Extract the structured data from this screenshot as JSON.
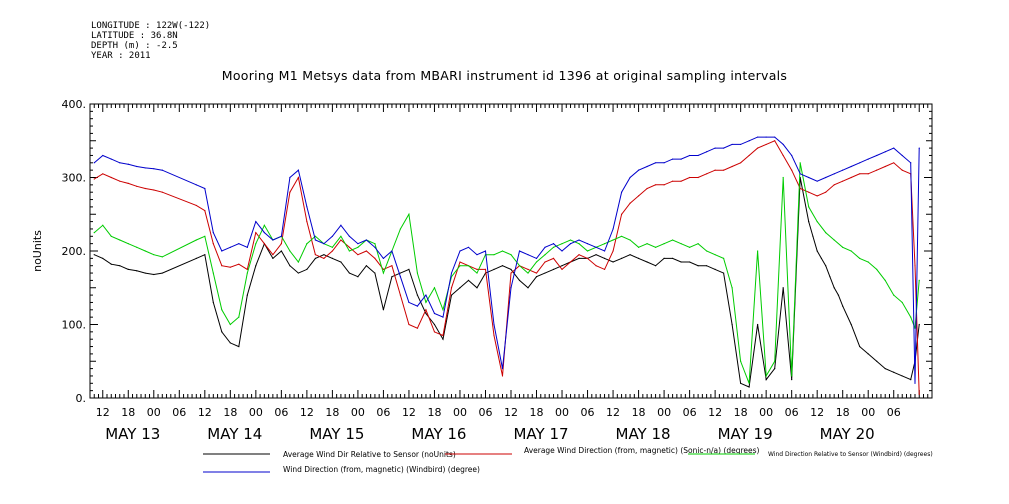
{
  "header": {
    "longitude": "LONGITUDE : 122W(-122)",
    "latitude": "LATITUDE : 36.8N",
    "depth": "DEPTH (m) : -2.5",
    "year": "YEAR : 2011"
  },
  "chart_data": {
    "type": "line",
    "title": "Mooring M1 Metsys data from MBARI instrument id 1396 at original sampling intervals",
    "ylabel": "noUnits",
    "xlabel": "",
    "ylim": [
      0,
      400
    ],
    "y_ticks": [
      "0.",
      "100.",
      "200.",
      "300.",
      "400."
    ],
    "x_range_hours": [
      -15,
      183
    ],
    "x_hour_ticks": [
      "12",
      "18",
      "00",
      "06",
      "12",
      "18",
      "00",
      "06",
      "12",
      "18",
      "00",
      "06",
      "12",
      "18",
      "00",
      "06",
      "12",
      "18",
      "00",
      "06",
      "12",
      "18",
      "00",
      "06",
      "12",
      "18",
      "00",
      "06",
      "12",
      "18",
      "00",
      "06"
    ],
    "x_day_labels": [
      "MAY 13",
      "MAY 14",
      "MAY 15",
      "MAY 16",
      "MAY 17",
      "MAY 18",
      "MAY 19",
      "MAY 20"
    ],
    "x_units_note": "x values are hours from 00:00 May 13 2011",
    "series": [
      {
        "name": "Average Wind Dir Relative to Sensor (noUnits)",
        "color": "#000000",
        "x": [
          -14,
          -12,
          -10,
          -8,
          -6,
          -4,
          -2,
          0,
          2,
          10,
          12,
          14,
          16,
          18,
          20,
          22,
          24,
          26,
          28,
          30,
          32,
          34,
          36,
          38,
          40,
          42,
          44,
          46,
          48,
          50,
          52,
          54,
          56,
          58,
          60,
          62,
          64,
          66,
          68,
          70,
          72,
          74,
          76,
          78,
          80,
          82,
          84,
          86,
          88,
          90,
          92,
          94,
          96,
          98,
          100,
          102,
          104,
          106,
          108,
          110,
          112,
          114,
          116,
          118,
          120,
          122,
          124,
          126,
          128,
          130,
          132,
          134,
          136,
          138,
          140,
          142,
          144,
          146,
          148,
          150,
          152,
          154,
          155,
          156,
          157,
          158,
          159,
          160,
          161,
          162,
          164,
          166,
          168,
          170,
          172,
          174,
          176,
          178,
          179,
          180
        ],
        "y": [
          195,
          190,
          182,
          180,
          175,
          173,
          170,
          168,
          170,
          190,
          195,
          130,
          90,
          75,
          70,
          140,
          180,
          210,
          190,
          200,
          180,
          170,
          175,
          190,
          195,
          190,
          185,
          170,
          165,
          180,
          170,
          120,
          165,
          170,
          175,
          140,
          115,
          100,
          80,
          140,
          150,
          160,
          150,
          170,
          175,
          180,
          175,
          160,
          150,
          165,
          170,
          175,
          180,
          185,
          190,
          190,
          195,
          190,
          185,
          190,
          195,
          190,
          185,
          180,
          190,
          190,
          185,
          185,
          180,
          180,
          175,
          170,
          100,
          20,
          15,
          100,
          25,
          40,
          150,
          25,
          300,
          240,
          220,
          200,
          190,
          180,
          165,
          150,
          140,
          125,
          100,
          70,
          60,
          50,
          40,
          35,
          30,
          25,
          50,
          100
        ],
        "note": "values between hours 145 and 160 oscillate rapidly between about 10 and 350"
      },
      {
        "name": "Average Wind Direction (from, magnetic) (Sonic-n/a) (degrees)",
        "color": "#cc0000",
        "x": [
          -14,
          -12,
          -10,
          -8,
          -6,
          -4,
          -2,
          0,
          2,
          10,
          12,
          14,
          16,
          18,
          20,
          22,
          24,
          26,
          28,
          30,
          32,
          34,
          36,
          38,
          40,
          42,
          44,
          46,
          48,
          50,
          52,
          54,
          56,
          58,
          60,
          62,
          64,
          66,
          68,
          70,
          72,
          74,
          76,
          78,
          80,
          82,
          84,
          86,
          88,
          90,
          92,
          94,
          96,
          98,
          100,
          102,
          104,
          106,
          108,
          110,
          112,
          114,
          116,
          118,
          120,
          122,
          124,
          126,
          128,
          130,
          132,
          134,
          136,
          138,
          140,
          142,
          144,
          146,
          148,
          150,
          152,
          154,
          156,
          158,
          160,
          162,
          164,
          166,
          168,
          170,
          172,
          174,
          176,
          178,
          179,
          180
        ],
        "y": [
          298,
          305,
          300,
          295,
          292,
          288,
          285,
          283,
          280,
          262,
          255,
          210,
          180,
          178,
          182,
          175,
          225,
          210,
          195,
          210,
          280,
          300,
          240,
          195,
          190,
          200,
          215,
          205,
          195,
          200,
          190,
          175,
          180,
          140,
          100,
          95,
          120,
          90,
          85,
          150,
          185,
          180,
          175,
          175,
          85,
          30,
          170,
          180,
          175,
          170,
          185,
          190,
          175,
          185,
          195,
          190,
          180,
          175,
          200,
          250,
          265,
          275,
          285,
          290,
          290,
          295,
          295,
          300,
          300,
          305,
          310,
          310,
          315,
          320,
          330,
          340,
          345,
          350,
          330,
          310,
          285,
          280,
          275,
          280,
          290,
          295,
          300,
          305,
          305,
          310,
          315,
          320,
          310,
          305,
          180,
          5
        ],
        "note": "values between hours 145 and 160 oscillate rapidly between about 10 and 350"
      },
      {
        "name": "Wind Direction Relative to Sensor (Windbird) (degrees)",
        "color": "#00cc00",
        "x": [
          -14,
          -12,
          -10,
          -8,
          -6,
          -4,
          -2,
          0,
          2,
          10,
          12,
          14,
          16,
          18,
          20,
          22,
          24,
          26,
          28,
          30,
          32,
          34,
          36,
          38,
          40,
          42,
          44,
          46,
          48,
          50,
          52,
          54,
          56,
          58,
          60,
          62,
          64,
          66,
          68,
          70,
          72,
          74,
          76,
          78,
          80,
          82,
          84,
          86,
          88,
          90,
          92,
          94,
          96,
          98,
          100,
          102,
          104,
          106,
          108,
          110,
          112,
          114,
          116,
          118,
          120,
          122,
          124,
          126,
          128,
          130,
          132,
          134,
          136,
          138,
          140,
          142,
          144,
          146,
          148,
          150,
          152,
          154,
          156,
          158,
          160,
          162,
          164,
          166,
          168,
          170,
          172,
          174,
          176,
          178,
          179,
          180
        ],
        "y": [
          225,
          235,
          220,
          215,
          210,
          205,
          200,
          195,
          192,
          215,
          220,
          170,
          120,
          100,
          110,
          170,
          210,
          235,
          215,
          220,
          200,
          185,
          210,
          220,
          210,
          205,
          220,
          200,
          205,
          215,
          210,
          170,
          200,
          230,
          250,
          170,
          130,
          150,
          120,
          165,
          180,
          180,
          170,
          195,
          195,
          200,
          195,
          180,
          170,
          185,
          195,
          205,
          210,
          215,
          210,
          200,
          205,
          210,
          215,
          220,
          215,
          205,
          210,
          205,
          210,
          215,
          210,
          205,
          210,
          200,
          195,
          190,
          150,
          50,
          20,
          200,
          30,
          50,
          300,
          30,
          320,
          260,
          240,
          225,
          215,
          205,
          200,
          190,
          185,
          175,
          160,
          140,
          130,
          110,
          95,
          160
        ],
        "note": "values between hours 145 and 160 oscillate rapidly between about 10 and 350"
      },
      {
        "name": "Wind Direction (from, magnetic) (Windbird) (degree)",
        "color": "#0000cc",
        "x": [
          -14,
          -12,
          -10,
          -8,
          -6,
          -4,
          -2,
          0,
          2,
          10,
          12,
          14,
          16,
          18,
          20,
          22,
          24,
          26,
          28,
          30,
          32,
          34,
          36,
          38,
          40,
          42,
          44,
          46,
          48,
          50,
          52,
          54,
          56,
          58,
          60,
          62,
          64,
          66,
          68,
          70,
          72,
          74,
          76,
          78,
          80,
          82,
          84,
          86,
          88,
          90,
          92,
          94,
          96,
          98,
          100,
          102,
          104,
          106,
          108,
          110,
          112,
          114,
          116,
          118,
          120,
          122,
          124,
          126,
          128,
          130,
          132,
          134,
          136,
          138,
          140,
          142,
          144,
          146,
          148,
          150,
          152,
          154,
          156,
          158,
          160,
          162,
          164,
          166,
          168,
          170,
          172,
          174,
          176,
          178,
          179,
          180
        ],
        "y": [
          320,
          330,
          325,
          320,
          318,
          315,
          313,
          312,
          310,
          290,
          285,
          225,
          200,
          205,
          210,
          205,
          240,
          225,
          215,
          220,
          300,
          310,
          260,
          215,
          210,
          220,
          235,
          220,
          210,
          215,
          205,
          190,
          200,
          165,
          130,
          125,
          140,
          115,
          110,
          170,
          200,
          205,
          195,
          200,
          100,
          40,
          150,
          200,
          195,
          190,
          205,
          210,
          200,
          210,
          215,
          210,
          205,
          200,
          230,
          280,
          300,
          310,
          315,
          320,
          320,
          325,
          325,
          330,
          330,
          335,
          340,
          340,
          345,
          345,
          350,
          355,
          355,
          355,
          345,
          330,
          305,
          300,
          295,
          300,
          305,
          310,
          315,
          320,
          325,
          330,
          335,
          340,
          330,
          320,
          20,
          340
        ],
        "note": "values between hours 145 and 160 oscillate rapidly between about 10 and 350"
      }
    ]
  }
}
